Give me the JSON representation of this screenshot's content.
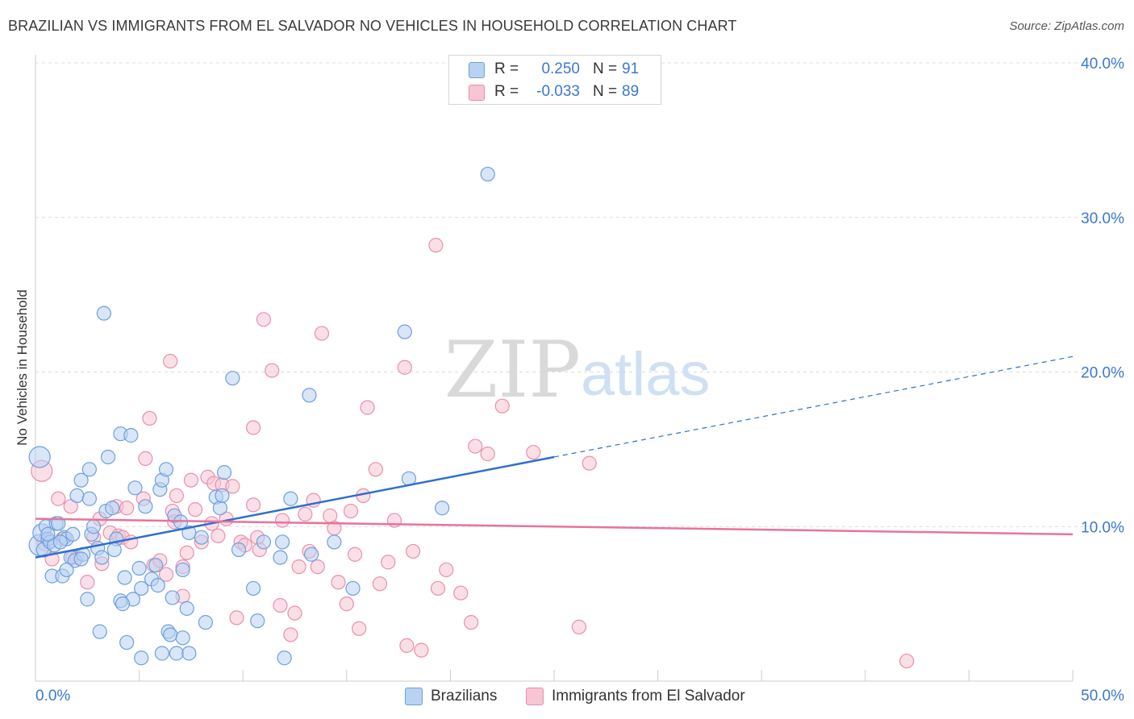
{
  "title": "BRAZILIAN VS IMMIGRANTS FROM EL SALVADOR NO VEHICLES IN HOUSEHOLD CORRELATION CHART",
  "source": "Source: ZipAtlas.com",
  "colors": {
    "blue_fill": "#b8d2f2",
    "blue_stroke": "#6f9fdc",
    "blue_line": "#2f6fce",
    "pink_fill": "#f7c5d4",
    "pink_stroke": "#e98fac",
    "pink_line": "#e8739a",
    "tick_label": "#3b78d0",
    "grid": "#dcdcdc"
  },
  "legend": {
    "rows": [
      {
        "r_label": "R =",
        "r_value": "0.250",
        "n_label": "N =",
        "n_value": "91"
      },
      {
        "r_label": "R =",
        "r_value": "-0.033",
        "n_label": "N =",
        "n_value": "89"
      }
    ]
  },
  "bottom_legend": {
    "series1": "Brazilians",
    "series2": "Immigrants from El Salvador"
  },
  "watermark": {
    "part1": "ZIP",
    "part2": "atlas"
  },
  "chart_data": {
    "type": "scatter",
    "title": "BRAZILIAN VS IMMIGRANTS FROM EL SALVADOR NO VEHICLES IN HOUSEHOLD CORRELATION CHART",
    "xlabel": "",
    "ylabel": "No Vehicles in Household",
    "xlim": [
      0,
      50
    ],
    "ylim": [
      0,
      40
    ],
    "x_tick_labels": [
      {
        "value": 0,
        "label": "0.0%"
      },
      {
        "value": 50,
        "label": "50.0%"
      }
    ],
    "y_tick_labels": [
      {
        "value": 10,
        "label": "10.0%"
      },
      {
        "value": 20,
        "label": "20.0%"
      },
      {
        "value": 30,
        "label": "30.0%"
      },
      {
        "value": 40,
        "label": "40.0%"
      }
    ],
    "series": [
      {
        "name": "Brazilians",
        "r": 0.25,
        "n": 91,
        "trend": {
          "x0": 0,
          "y0": 8.0,
          "x1": 25,
          "y1": 14.5,
          "dashed_to_x": 50,
          "dashed_to_y": 21.0
        },
        "points": [
          [
            0.2,
            14.5,
            "L"
          ],
          [
            0.2,
            8.8,
            "L"
          ],
          [
            0.3,
            9.6,
            "M"
          ],
          [
            0.4,
            8.5,
            "S"
          ],
          [
            0.5,
            10.0
          ],
          [
            0.6,
            9.2
          ],
          [
            0.7,
            9.0
          ],
          [
            0.9,
            8.8
          ],
          [
            0.8,
            6.8
          ],
          [
            1.0,
            10.2
          ],
          [
            1.1,
            10.2
          ],
          [
            1.3,
            6.8
          ],
          [
            1.4,
            9.3
          ],
          [
            1.5,
            9.2
          ],
          [
            1.7,
            8.0
          ],
          [
            1.8,
            9.5
          ],
          [
            1.9,
            7.8
          ],
          [
            2.0,
            12.0
          ],
          [
            2.2,
            13.0
          ],
          [
            2.3,
            8.2
          ],
          [
            2.6,
            13.7
          ],
          [
            2.6,
            11.8
          ],
          [
            2.7,
            9.5
          ],
          [
            2.8,
            10.0
          ],
          [
            3.0,
            8.6
          ],
          [
            2.5,
            5.3
          ],
          [
            3.1,
            3.2
          ],
          [
            3.3,
            23.8
          ],
          [
            3.4,
            11.0
          ],
          [
            3.5,
            14.5
          ],
          [
            3.7,
            11.2
          ],
          [
            3.9,
            9.2
          ],
          [
            3.8,
            8.5
          ],
          [
            4.1,
            16.0
          ],
          [
            4.3,
            6.7
          ],
          [
            4.4,
            2.5
          ],
          [
            4.6,
            15.9
          ],
          [
            4.7,
            5.3
          ],
          [
            5.0,
            7.3
          ],
          [
            4.1,
            5.2
          ],
          [
            4.2,
            5.0
          ],
          [
            5.1,
            6.0
          ],
          [
            5.3,
            11.3
          ],
          [
            5.6,
            6.6
          ],
          [
            5.8,
            7.5
          ],
          [
            5.9,
            6.2
          ],
          [
            6.0,
            12.4
          ],
          [
            6.1,
            13.0
          ],
          [
            6.3,
            13.7
          ],
          [
            6.6,
            5.4
          ],
          [
            6.7,
            10.7
          ],
          [
            7.0,
            10.3
          ],
          [
            7.1,
            7.2
          ],
          [
            6.4,
            3.2
          ],
          [
            6.5,
            3.0
          ],
          [
            7.3,
            4.7
          ],
          [
            7.4,
            9.6
          ],
          [
            5.1,
            1.5
          ],
          [
            6.1,
            1.8
          ],
          [
            6.8,
            1.8
          ],
          [
            7.1,
            2.8
          ],
          [
            7.4,
            1.8
          ],
          [
            8.2,
            3.8
          ],
          [
            8.7,
            11.9
          ],
          [
            8.9,
            11.2
          ],
          [
            9.0,
            12.0
          ],
          [
            9.1,
            13.5
          ],
          [
            9.5,
            19.6
          ],
          [
            9.8,
            8.5
          ],
          [
            10.5,
            6.0
          ],
          [
            10.7,
            3.9
          ],
          [
            11.0,
            9.0
          ],
          [
            11.8,
            8.0
          ],
          [
            11.9,
            9.0
          ],
          [
            12.0,
            1.5
          ],
          [
            12.3,
            11.8
          ],
          [
            13.2,
            18.5
          ],
          [
            13.3,
            8.2
          ],
          [
            14.4,
            9.0
          ],
          [
            15.3,
            6.0
          ],
          [
            17.8,
            22.6
          ],
          [
            18.0,
            13.1
          ],
          [
            19.6,
            11.2
          ],
          [
            21.8,
            32.8
          ],
          [
            1.5,
            7.2
          ],
          [
            2.2,
            7.9
          ],
          [
            0.6,
            9.5
          ],
          [
            1.2,
            9.0
          ],
          [
            4.8,
            12.5
          ],
          [
            3.2,
            8.0
          ],
          [
            8.0,
            9.3
          ]
        ]
      },
      {
        "name": "Immigrants from El Salvador",
        "r": -0.033,
        "n": 89,
        "trend": {
          "x0": 0,
          "y0": 10.5,
          "x1": 50,
          "y1": 9.5
        },
        "points": [
          [
            0.3,
            13.6,
            "L"
          ],
          [
            0.5,
            9.0,
            "M"
          ],
          [
            0.8,
            7.9
          ],
          [
            1.1,
            11.8
          ],
          [
            1.3,
            9.2
          ],
          [
            1.7,
            11.3
          ],
          [
            1.8,
            8.0
          ],
          [
            2.0,
            8.0
          ],
          [
            2.5,
            6.4
          ],
          [
            2.8,
            9.3
          ],
          [
            3.1,
            10.5
          ],
          [
            3.2,
            7.6
          ],
          [
            3.6,
            9.6
          ],
          [
            3.9,
            11.3
          ],
          [
            4.0,
            9.4
          ],
          [
            4.2,
            9.3
          ],
          [
            4.4,
            11.2
          ],
          [
            4.6,
            9.0
          ],
          [
            5.2,
            11.8
          ],
          [
            5.3,
            14.4
          ],
          [
            5.5,
            17.0
          ],
          [
            5.7,
            7.5
          ],
          [
            6.0,
            7.8
          ],
          [
            6.3,
            6.9
          ],
          [
            6.5,
            20.7
          ],
          [
            6.6,
            11.0
          ],
          [
            6.7,
            10.3
          ],
          [
            6.8,
            12.0
          ],
          [
            7.1,
            7.4
          ],
          [
            7.1,
            5.5
          ],
          [
            7.3,
            8.3
          ],
          [
            7.5,
            13.0
          ],
          [
            7.7,
            11.1
          ],
          [
            8.0,
            9.0
          ],
          [
            8.3,
            13.2
          ],
          [
            8.5,
            10.2
          ],
          [
            8.6,
            12.8
          ],
          [
            8.8,
            9.4
          ],
          [
            9.0,
            12.7
          ],
          [
            9.2,
            10.5
          ],
          [
            9.5,
            12.6
          ],
          [
            9.7,
            4.1
          ],
          [
            9.9,
            9.0
          ],
          [
            10.1,
            8.8
          ],
          [
            10.5,
            16.4
          ],
          [
            10.5,
            11.4
          ],
          [
            10.7,
            9.3
          ],
          [
            10.8,
            8.5
          ],
          [
            11.0,
            23.4
          ],
          [
            11.4,
            20.1
          ],
          [
            11.8,
            4.9
          ],
          [
            11.9,
            10.4
          ],
          [
            12.3,
            3.0
          ],
          [
            12.5,
            4.4
          ],
          [
            12.7,
            7.4
          ],
          [
            13.0,
            10.8
          ],
          [
            13.2,
            8.4
          ],
          [
            13.4,
            11.7
          ],
          [
            13.6,
            7.4
          ],
          [
            13.8,
            22.5
          ],
          [
            14.2,
            10.7
          ],
          [
            14.4,
            9.9
          ],
          [
            14.6,
            6.4
          ],
          [
            15.0,
            5.0
          ],
          [
            15.2,
            11.0
          ],
          [
            15.4,
            8.2
          ],
          [
            15.6,
            3.4
          ],
          [
            16.0,
            17.7
          ],
          [
            16.4,
            13.7
          ],
          [
            16.6,
            6.3
          ],
          [
            17.0,
            7.7
          ],
          [
            17.3,
            10.4
          ],
          [
            17.8,
            20.3
          ],
          [
            17.9,
            2.3
          ],
          [
            18.2,
            8.4
          ],
          [
            18.6,
            2.0
          ],
          [
            19.3,
            28.2
          ],
          [
            19.4,
            6.0
          ],
          [
            19.8,
            7.2
          ],
          [
            20.5,
            5.7
          ],
          [
            21.0,
            3.8
          ],
          [
            21.2,
            15.2
          ],
          [
            21.8,
            14.7
          ],
          [
            22.5,
            17.8
          ],
          [
            24.0,
            14.8
          ],
          [
            26.2,
            3.5
          ],
          [
            26.7,
            14.1
          ],
          [
            42.0,
            1.3
          ],
          [
            15.8,
            12.0
          ]
        ]
      }
    ]
  }
}
